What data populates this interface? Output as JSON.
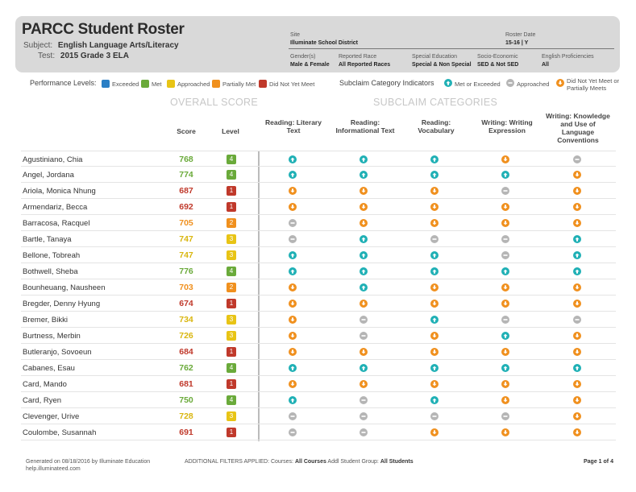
{
  "header": {
    "title": "PARCC Student Roster",
    "subject_label": "Subject:",
    "subject_value": "English Language Arts/Literacy",
    "test_label": "Test:",
    "test_value": "2015 Grade 3 ELA",
    "site_label": "Site",
    "site_value": "Illuminate School District",
    "roster_date_label": "Roster Date",
    "roster_date_value": "15-16 | Y",
    "gender_label": "Gender(s)",
    "gender_value": "Male & Female",
    "race_label": "Reported Race",
    "race_value": "All Reported Races",
    "sped_label": "Special Education",
    "sped_value": "Special & Non Special",
    "ses_label": "Socio-Economic",
    "ses_value": "SED & Not SED",
    "elp_label": "English Proficiencies",
    "elp_value": "All"
  },
  "legend": {
    "perf_label": "Performance Levels:",
    "levels": [
      {
        "label": "Exceeded",
        "color": "#2a7fc5"
      },
      {
        "label": "Met",
        "color": "#6aaa3a"
      },
      {
        "label": "Approached",
        "color": "#e8c415"
      },
      {
        "label": "Partially Met",
        "color": "#f0901e"
      },
      {
        "label": "Did Not Yet Meet",
        "color": "#c0392b"
      }
    ],
    "subclaim_label": "Subclaim Category Indicators",
    "met_label": "Met or Exceeded",
    "approached_label": "Approached",
    "not_met_label_1": "Did Not Yet Meet or",
    "not_met_label_2": "Partially Meets"
  },
  "sections": {
    "overall": "OVERALL SCORE",
    "subclaim": "SUBCLAIM CATEGORIES"
  },
  "columns": {
    "score": "Score",
    "level": "Level",
    "sub": [
      [
        "Reading: Literary",
        "Text"
      ],
      [
        "Reading:",
        "Informational Text"
      ],
      [
        "Reading:",
        "Vocabulary"
      ],
      [
        "Writing: Writing",
        "Expression"
      ],
      [
        "Writing: Knowledge",
        "and Use of",
        "Language",
        "Conventions"
      ]
    ]
  },
  "colors": {
    "up": "#1fb0b5",
    "approach": "#b5b5b5",
    "down": "#f0901e",
    "level": {
      "1": "#c0392b",
      "2": "#f0901e",
      "3": "#e8c415",
      "4": "#6aaa3a",
      "5": "#2a7fc5"
    },
    "score": {
      "1": "#c0392b",
      "2": "#f0901e",
      "3": "#d9b60f",
      "4": "#6aaa3a",
      "5": "#2a7fc5"
    }
  },
  "students": [
    {
      "name": "Agustiniano, Chia",
      "score": "768",
      "level": "4",
      "sub": [
        "up",
        "up",
        "up",
        "down",
        "approach"
      ]
    },
    {
      "name": "Angel, Jordana",
      "score": "774",
      "level": "4",
      "sub": [
        "up",
        "up",
        "up",
        "up",
        "down"
      ]
    },
    {
      "name": "Ariola, Monica Nhung",
      "score": "687",
      "level": "1",
      "sub": [
        "down",
        "down",
        "down",
        "approach",
        "down"
      ]
    },
    {
      "name": "Armendariz, Becca",
      "score": "692",
      "level": "1",
      "sub": [
        "down",
        "down",
        "down",
        "down",
        "down"
      ]
    },
    {
      "name": "Barracosa, Racquel",
      "score": "705",
      "level": "2",
      "sub": [
        "approach",
        "down",
        "down",
        "down",
        "down"
      ]
    },
    {
      "name": "Bartle, Tanaya",
      "score": "747",
      "level": "3",
      "sub": [
        "approach",
        "up",
        "approach",
        "approach",
        "up"
      ]
    },
    {
      "name": "Bellone, Tobreah",
      "score": "747",
      "level": "3",
      "sub": [
        "up",
        "up",
        "up",
        "approach",
        "up"
      ]
    },
    {
      "name": "Bothwell, Sheba",
      "score": "776",
      "level": "4",
      "sub": [
        "up",
        "up",
        "up",
        "up",
        "up"
      ]
    },
    {
      "name": "Bounheuang, Nausheen",
      "score": "703",
      "level": "2",
      "sub": [
        "down",
        "up",
        "down",
        "down",
        "down"
      ]
    },
    {
      "name": "Bregder, Denny Hyung",
      "score": "674",
      "level": "1",
      "sub": [
        "down",
        "down",
        "down",
        "down",
        "down"
      ]
    },
    {
      "name": "Bremer, Bikki",
      "score": "734",
      "level": "3",
      "sub": [
        "down",
        "approach",
        "up",
        "approach",
        "approach"
      ]
    },
    {
      "name": "Burtness, Merbin",
      "score": "726",
      "level": "3",
      "sub": [
        "down",
        "approach",
        "down",
        "up",
        "down"
      ]
    },
    {
      "name": "Butleranjo, Sovoeun",
      "score": "684",
      "level": "1",
      "sub": [
        "down",
        "down",
        "down",
        "down",
        "down"
      ]
    },
    {
      "name": "Cabanes, Esau",
      "score": "762",
      "level": "4",
      "sub": [
        "up",
        "up",
        "up",
        "up",
        "up"
      ]
    },
    {
      "name": "Card, Mando",
      "score": "681",
      "level": "1",
      "sub": [
        "down",
        "down",
        "down",
        "down",
        "down"
      ]
    },
    {
      "name": "Card, Ryen",
      "score": "750",
      "level": "4",
      "sub": [
        "up",
        "approach",
        "up",
        "down",
        "down"
      ]
    },
    {
      "name": "Clevenger, Urive",
      "score": "728",
      "level": "3",
      "sub": [
        "approach",
        "approach",
        "approach",
        "approach",
        "down"
      ]
    },
    {
      "name": "Coulombe, Susannah",
      "score": "691",
      "level": "1",
      "sub": [
        "approach",
        "approach",
        "down",
        "down",
        "down"
      ]
    }
  ],
  "footer": {
    "generated": "Generated on 08/18/2016 by Illuminate Education",
    "website": "help.illuminateed.com",
    "filters_label": "ADDITIONAL FILTERS APPLIED:",
    "courses_label": "Courses:",
    "courses_value": "All Courses",
    "group_label": "Addl Student Group:",
    "group_value": "All Students",
    "page": "Page 1 of 4"
  }
}
